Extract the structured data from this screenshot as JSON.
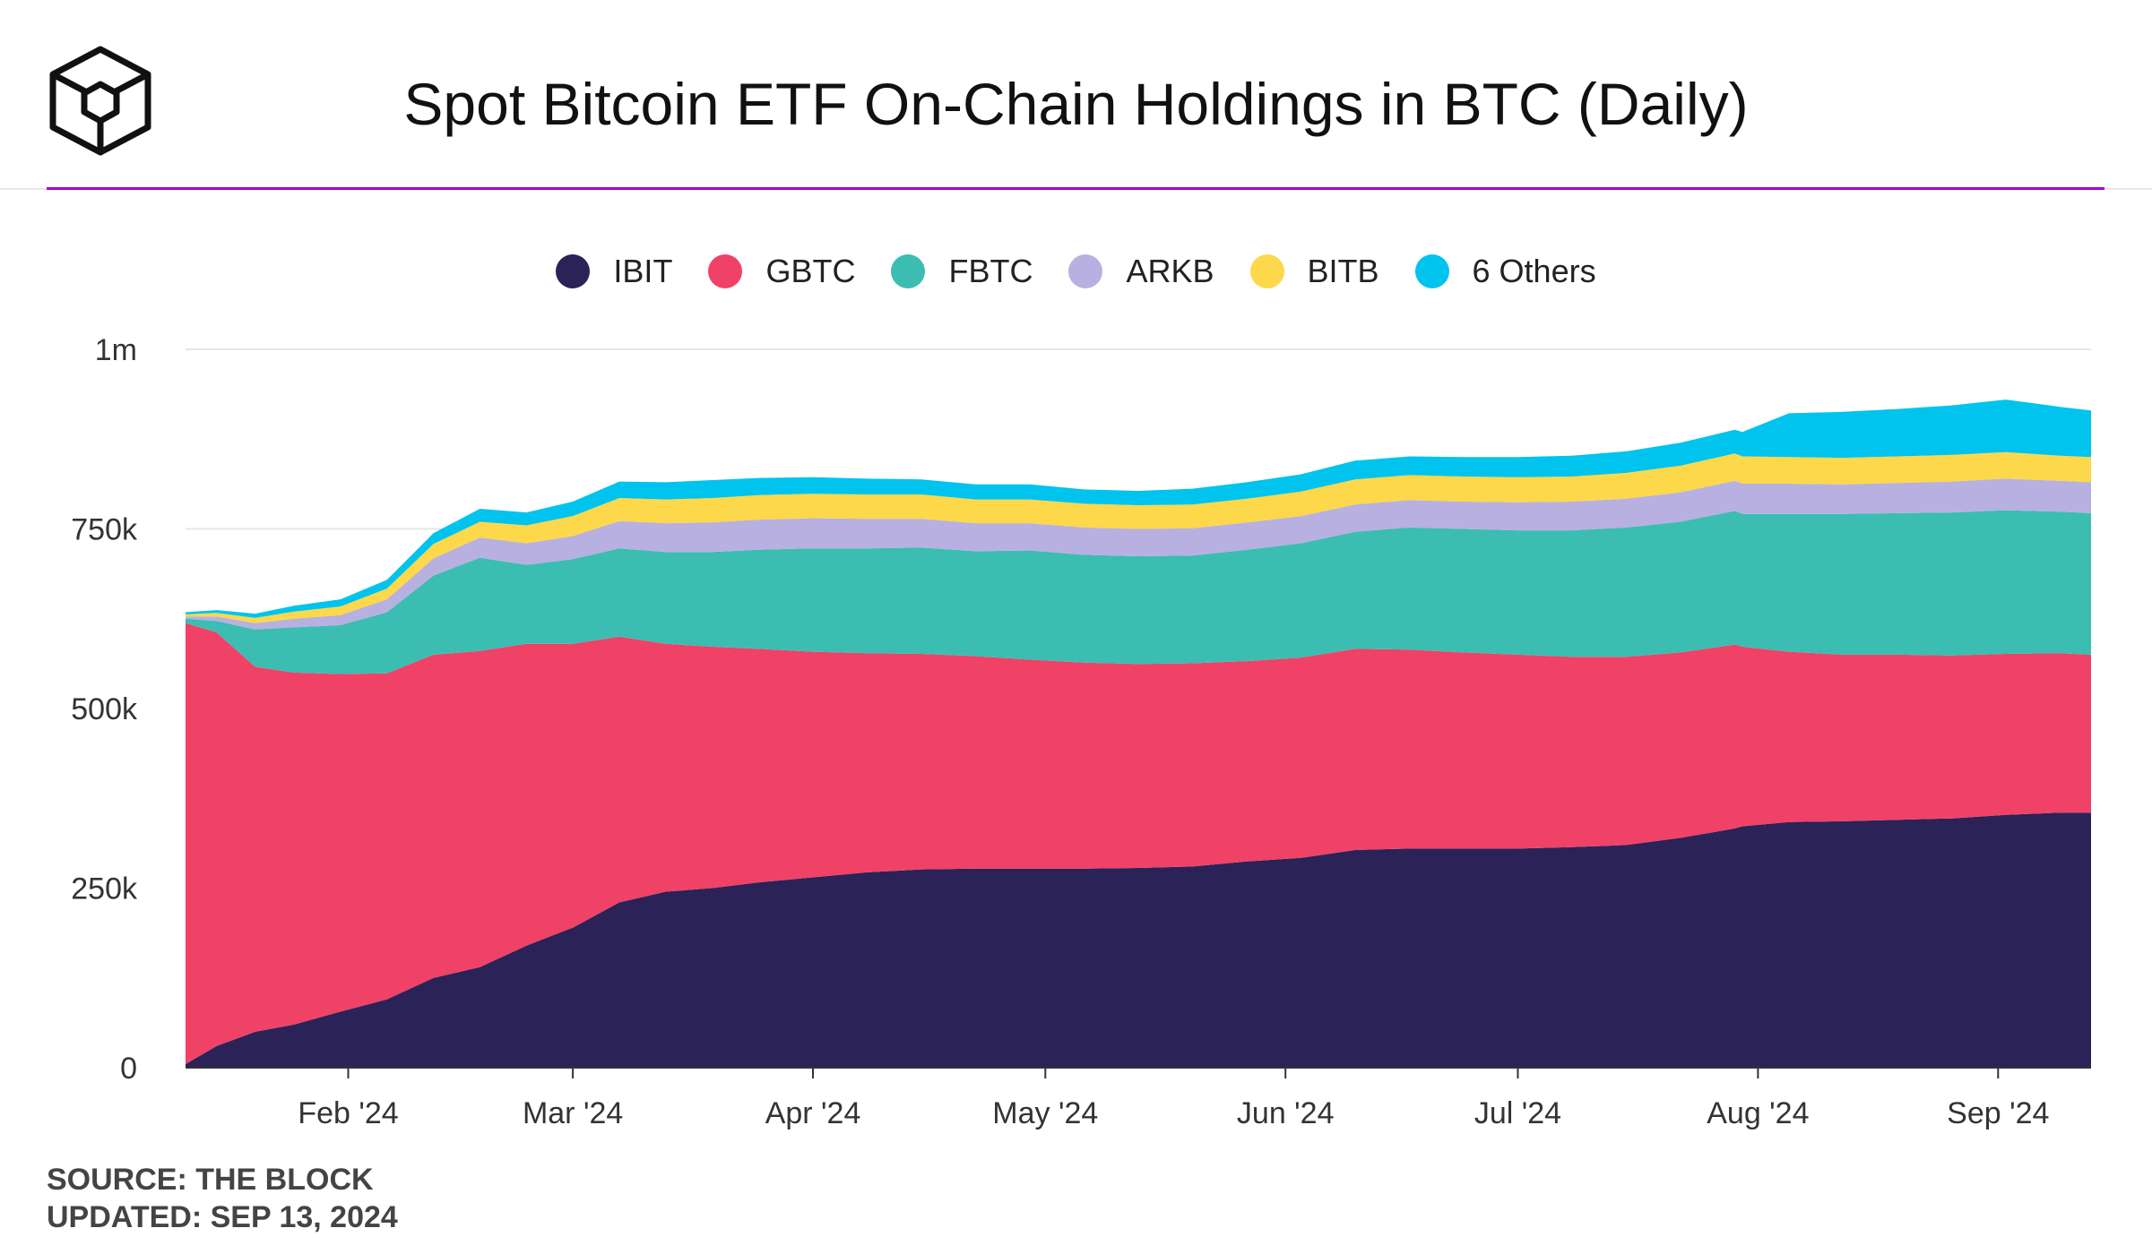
{
  "header": {
    "title": "Spot Bitcoin ETF On-Chain Holdings in BTC (Daily)",
    "logo_icon": "cube-logo-icon"
  },
  "footer": {
    "source": "SOURCE: THE BLOCK",
    "updated": "UPDATED: SEP 13, 2024"
  },
  "colors": {
    "accent_rule": "#a400d6",
    "IBIT": "#2b2258",
    "GBTC": "#f04166",
    "FBTC": "#3bbdb2",
    "ARKB": "#b8b0e0",
    "BITB": "#fcd84a",
    "others": "#00c3ee"
  },
  "chart_data": {
    "type": "area",
    "stacked": true,
    "legend_position": "top-center",
    "grid": "horizontal",
    "x_ticks": [
      "Feb '24",
      "Mar '24",
      "Apr '24",
      "May '24",
      "Jun '24",
      "Jul '24",
      "Aug '24",
      "Sep '24"
    ],
    "x_tick_dates": [
      "2024-02-01",
      "2024-03-01",
      "2024-04-01",
      "2024-05-01",
      "2024-06-01",
      "2024-07-01",
      "2024-08-01",
      "2024-09-01"
    ],
    "y_ticks": [
      0,
      250000,
      500000,
      750000,
      1000000
    ],
    "y_tick_labels": [
      "0",
      "250k",
      "500k",
      "750k",
      "1m"
    ],
    "ylim": [
      0,
      1000000
    ],
    "x": [
      "2024-01-11",
      "2024-01-15",
      "2024-01-20",
      "2024-01-25",
      "2024-01-31",
      "2024-02-06",
      "2024-02-12",
      "2024-02-18",
      "2024-02-24",
      "2024-03-01",
      "2024-03-07",
      "2024-03-13",
      "2024-03-19",
      "2024-03-25",
      "2024-04-01",
      "2024-04-08",
      "2024-04-15",
      "2024-04-22",
      "2024-04-29",
      "2024-05-06",
      "2024-05-13",
      "2024-05-20",
      "2024-05-27",
      "2024-06-03",
      "2024-06-10",
      "2024-06-17",
      "2024-06-24",
      "2024-07-01",
      "2024-07-08",
      "2024-07-15",
      "2024-07-22",
      "2024-07-29",
      "2024-07-30",
      "2024-08-05",
      "2024-08-12",
      "2024-08-19",
      "2024-08-26",
      "2024-09-02",
      "2024-09-09",
      "2024-09-13"
    ],
    "series": [
      {
        "name": "IBIT",
        "values": [
          5000,
          30000,
          50000,
          60000,
          78000,
          95000,
          125000,
          140000,
          170000,
          195000,
          230000,
          245000,
          250000,
          258000,
          265000,
          272000,
          276000,
          277000,
          277000,
          277000,
          278000,
          280000,
          287000,
          292000,
          303000,
          305000,
          305000,
          305000,
          307000,
          310000,
          320000,
          333000,
          336000,
          342000,
          343000,
          345000,
          347000,
          352000,
          355000,
          355000
        ]
      },
      {
        "name": "GBTC",
        "values": [
          614000,
          576000,
          508000,
          490000,
          470000,
          454000,
          450000,
          440000,
          420000,
          395000,
          370000,
          345000,
          336000,
          325000,
          314000,
          305000,
          300000,
          296000,
          291000,
          287000,
          284000,
          283000,
          279000,
          279000,
          280000,
          277000,
          273000,
          270000,
          265000,
          262000,
          258000,
          256000,
          250000,
          237000,
          232000,
          230000,
          227000,
          224000,
          222000,
          220000
        ]
      },
      {
        "name": "FBTC",
        "values": [
          6000,
          16000,
          52000,
          63000,
          68000,
          85000,
          110000,
          130000,
          110000,
          118000,
          123000,
          128000,
          132000,
          138000,
          144000,
          146000,
          148000,
          146000,
          152000,
          150000,
          150000,
          150000,
          155000,
          159000,
          163000,
          170000,
          172000,
          173000,
          176000,
          180000,
          182000,
          186000,
          185000,
          192000,
          196000,
          197000,
          199000,
          200000,
          197000,
          197000
        ]
      },
      {
        "name": "ARKB",
        "values": [
          3000,
          6000,
          9000,
          12000,
          14000,
          18000,
          24000,
          28000,
          30000,
          32000,
          38000,
          40000,
          41000,
          42000,
          42000,
          41000,
          40000,
          39000,
          38000,
          38000,
          38000,
          38000,
          38000,
          38000,
          38000,
          38000,
          38000,
          39000,
          40000,
          40000,
          41000,
          42000,
          42000,
          42000,
          41000,
          42000,
          43000,
          44000,
          43000,
          43000
        ]
      },
      {
        "name": "BITB",
        "values": [
          3000,
          5000,
          7000,
          10000,
          12000,
          15000,
          20000,
          22000,
          25000,
          28000,
          32000,
          33000,
          34000,
          34000,
          34000,
          34000,
          34000,
          33000,
          33000,
          33000,
          33000,
          33000,
          33000,
          34000,
          35000,
          35000,
          35000,
          35000,
          35000,
          36000,
          37000,
          38000,
          38000,
          37000,
          37000,
          37000,
          37000,
          37000,
          35000,
          35000
        ]
      },
      {
        "name": "6 Others",
        "values": [
          3000,
          4000,
          6000,
          8000,
          10000,
          12000,
          15000,
          18000,
          18000,
          20000,
          23000,
          24000,
          25000,
          24000,
          23000,
          22000,
          21000,
          21000,
          21000,
          20000,
          20000,
          22000,
          23000,
          24000,
          26000,
          26000,
          27000,
          28000,
          29000,
          30000,
          32000,
          33000,
          34000,
          61000,
          64000,
          66000,
          69000,
          73000,
          68000,
          65000
        ]
      }
    ]
  }
}
